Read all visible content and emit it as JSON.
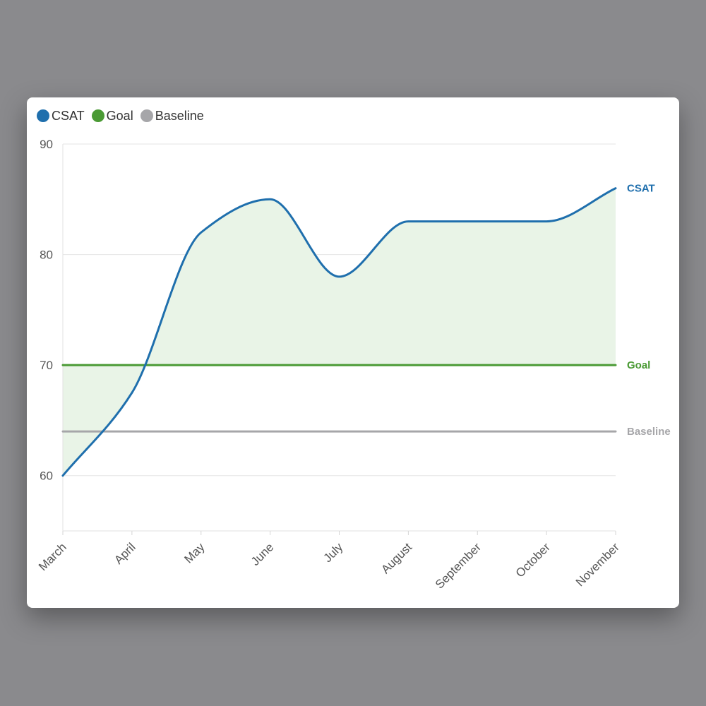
{
  "chart_data": {
    "type": "line",
    "x": [
      "March",
      "April",
      "May",
      "June",
      "July",
      "August",
      "September",
      "October",
      "November"
    ],
    "ylim": [
      55,
      90
    ],
    "yticks": [
      60,
      70,
      80,
      90
    ],
    "grid": true,
    "legend_position": "top-left",
    "series": [
      {
        "name": "CSAT",
        "color": "#1f6fad",
        "values": [
          60,
          67.5,
          82,
          85,
          78,
          83,
          83,
          83,
          86
        ]
      },
      {
        "name": "Goal",
        "color": "#4a9a34",
        "values": [
          70,
          70,
          70,
          70,
          70,
          70,
          70,
          70,
          70
        ]
      },
      {
        "name": "Baseline",
        "color": "#a6a6a9",
        "values": [
          64,
          64,
          64,
          64,
          64,
          64,
          64,
          64,
          64
        ]
      }
    ],
    "area_fill": {
      "between": [
        "CSAT",
        "Goal"
      ],
      "color": "#e9f4e7"
    },
    "end_labels": [
      "CSAT",
      "Goal",
      "Baseline"
    ]
  }
}
